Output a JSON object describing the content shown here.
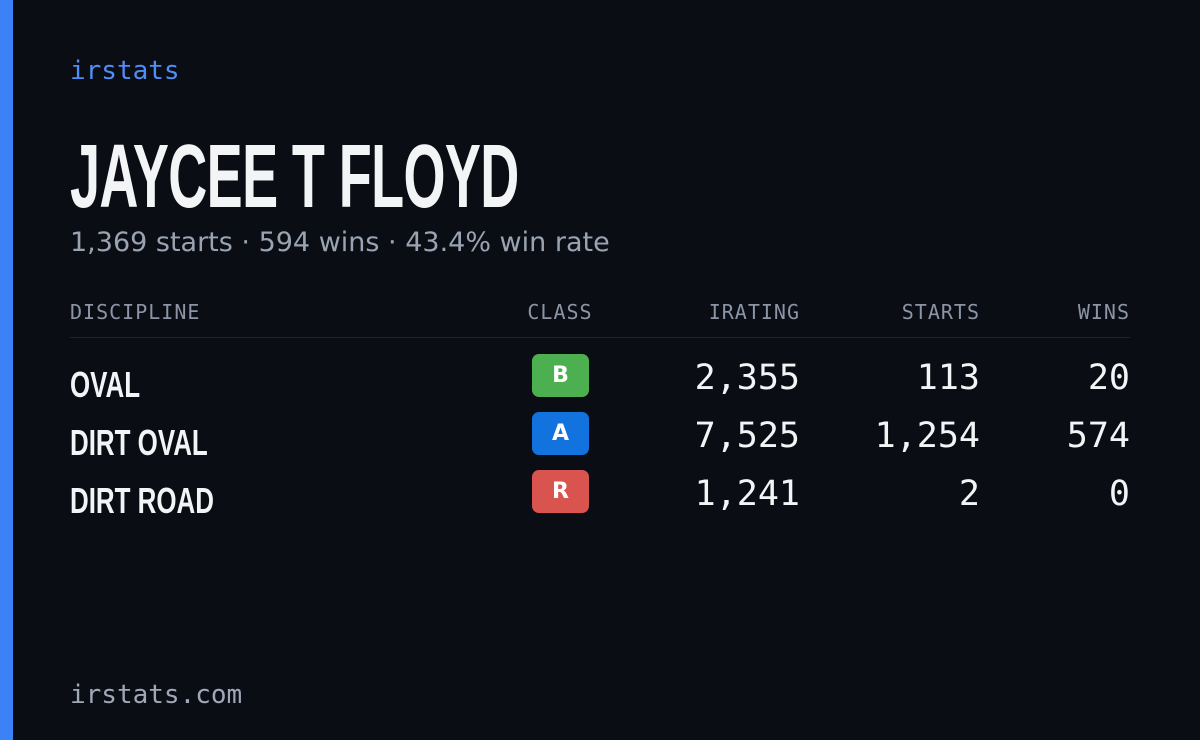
{
  "brand": "irstats",
  "driver": {
    "name": "JAYCEE T FLOYD",
    "summary": "1,369 starts · 594 wins · 43.4% win rate"
  },
  "table": {
    "headers": [
      "DISCIPLINE",
      "CLASS",
      "IRATING",
      "STARTS",
      "WINS"
    ],
    "rows": [
      {
        "discipline": "OVAL",
        "class": "B",
        "class_color": "#4caf50",
        "irating": "2,355",
        "starts": "113",
        "wins": "20"
      },
      {
        "discipline": "DIRT OVAL",
        "class": "A",
        "class_color": "#1273de",
        "irating": "7,525",
        "starts": "1,254",
        "wins": "574"
      },
      {
        "discipline": "DIRT ROAD",
        "class": "R",
        "class_color": "#d9534f",
        "irating": "1,241",
        "starts": "2",
        "wins": "0"
      }
    ]
  },
  "footer": "irstats.com"
}
